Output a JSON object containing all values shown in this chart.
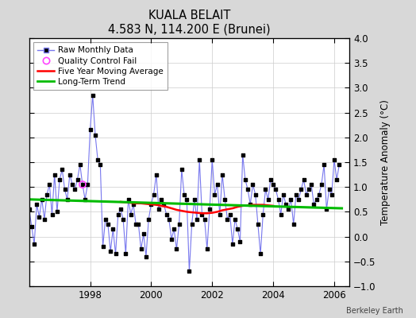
{
  "title": "KUALA BELAIT",
  "subtitle": "4.583 N, 114.200 E (Brunei)",
  "ylabel": "Temperature Anomaly (°C)",
  "watermark": "Berkeley Earth",
  "xlim": [
    1996.0,
    2006.5
  ],
  "ylim": [
    -1.0,
    4.0
  ],
  "yticks": [
    -1,
    -0.5,
    0,
    0.5,
    1,
    1.5,
    2,
    2.5,
    3,
    3.5,
    4
  ],
  "xticks": [
    1998,
    2000,
    2002,
    2004,
    2006
  ],
  "bg_color": "#d8d8d8",
  "plot_bg_color": "#ffffff",
  "raw_line_color": "#7777ee",
  "raw_dot_color": "#000000",
  "ma_color": "#ff0000",
  "trend_color": "#00bb00",
  "qc_color": "#ff44ff",
  "raw_data_x": [
    1996.0,
    1996.083,
    1996.167,
    1996.25,
    1996.333,
    1996.417,
    1996.5,
    1996.583,
    1996.667,
    1996.75,
    1996.833,
    1996.917,
    1997.0,
    1997.083,
    1997.167,
    1997.25,
    1997.333,
    1997.417,
    1997.5,
    1997.583,
    1997.667,
    1997.75,
    1997.833,
    1997.917,
    1998.0,
    1998.083,
    1998.167,
    1998.25,
    1998.333,
    1998.417,
    1998.5,
    1998.583,
    1998.667,
    1998.75,
    1998.833,
    1998.917,
    1999.0,
    1999.083,
    1999.167,
    1999.25,
    1999.333,
    1999.417,
    1999.5,
    1999.583,
    1999.667,
    1999.75,
    1999.833,
    1999.917,
    2000.0,
    2000.083,
    2000.167,
    2000.25,
    2000.333,
    2000.417,
    2000.5,
    2000.583,
    2000.667,
    2000.75,
    2000.833,
    2000.917,
    2001.0,
    2001.083,
    2001.167,
    2001.25,
    2001.333,
    2001.417,
    2001.5,
    2001.583,
    2001.667,
    2001.75,
    2001.833,
    2001.917,
    2002.0,
    2002.083,
    2002.167,
    2002.25,
    2002.333,
    2002.417,
    2002.5,
    2002.583,
    2002.667,
    2002.75,
    2002.833,
    2002.917,
    2003.0,
    2003.083,
    2003.167,
    2003.25,
    2003.333,
    2003.417,
    2003.5,
    2003.583,
    2003.667,
    2003.75,
    2003.833,
    2003.917,
    2004.0,
    2004.083,
    2004.167,
    2004.25,
    2004.333,
    2004.417,
    2004.5,
    2004.583,
    2004.667,
    2004.75,
    2004.833,
    2004.917,
    2005.0,
    2005.083,
    2005.167,
    2005.25,
    2005.333,
    2005.417,
    2005.5,
    2005.583,
    2005.667,
    2005.75,
    2005.833,
    2005.917,
    2006.0,
    2006.083,
    2006.167
  ],
  "raw_data_y": [
    0.55,
    0.2,
    -0.15,
    0.65,
    0.4,
    0.75,
    0.35,
    0.85,
    1.05,
    0.45,
    1.25,
    0.5,
    1.15,
    1.35,
    0.95,
    0.75,
    1.25,
    1.05,
    0.95,
    1.15,
    1.45,
    1.05,
    0.75,
    1.05,
    2.15,
    2.85,
    2.05,
    1.55,
    1.45,
    -0.2,
    0.35,
    0.25,
    -0.3,
    0.15,
    -0.35,
    0.45,
    0.55,
    0.35,
    -0.35,
    0.75,
    0.45,
    0.65,
    0.25,
    0.25,
    -0.25,
    0.05,
    -0.4,
    0.35,
    0.65,
    0.85,
    1.25,
    0.55,
    0.75,
    0.65,
    0.45,
    0.35,
    -0.05,
    0.15,
    -0.25,
    0.25,
    1.35,
    0.85,
    0.75,
    -0.7,
    0.25,
    0.75,
    0.35,
    1.55,
    0.45,
    0.35,
    -0.25,
    0.55,
    1.55,
    0.85,
    1.05,
    0.45,
    1.25,
    0.75,
    0.35,
    0.45,
    -0.15,
    0.35,
    0.15,
    -0.1,
    1.65,
    1.15,
    0.95,
    0.65,
    1.05,
    0.85,
    0.25,
    -0.35,
    0.45,
    0.95,
    0.75,
    1.15,
    1.05,
    0.95,
    0.75,
    0.45,
    0.85,
    0.65,
    0.55,
    0.75,
    0.25,
    0.85,
    0.75,
    0.95,
    1.15,
    0.85,
    0.95,
    1.05,
    0.65,
    0.75,
    0.85,
    1.05,
    1.45,
    0.55,
    0.95,
    0.85,
    1.55,
    1.15,
    1.45
  ],
  "qc_fail_x": [
    1997.75
  ],
  "qc_fail_y": [
    1.05
  ],
  "ma_x": [
    1999.0,
    1999.17,
    1999.33,
    1999.5,
    1999.67,
    1999.83,
    2000.0,
    2000.17,
    2000.33,
    2000.5,
    2000.67,
    2000.83,
    2001.0,
    2001.17,
    2001.33,
    2001.5,
    2001.67,
    2001.83,
    2002.0,
    2002.17,
    2002.33,
    2002.5,
    2002.67,
    2002.83,
    2003.0,
    2003.17,
    2003.33,
    2003.5,
    2003.67,
    2003.83,
    2004.0
  ],
  "ma_y": [
    0.7,
    0.69,
    0.68,
    0.67,
    0.67,
    0.66,
    0.65,
    0.64,
    0.62,
    0.6,
    0.57,
    0.54,
    0.52,
    0.5,
    0.49,
    0.48,
    0.47,
    0.47,
    0.48,
    0.5,
    0.53,
    0.55,
    0.57,
    0.6,
    0.62,
    0.63,
    0.64,
    0.64,
    0.64,
    0.63,
    0.62
  ],
  "trend_x": [
    1996.0,
    2006.25
  ],
  "trend_y": [
    0.75,
    0.57
  ]
}
